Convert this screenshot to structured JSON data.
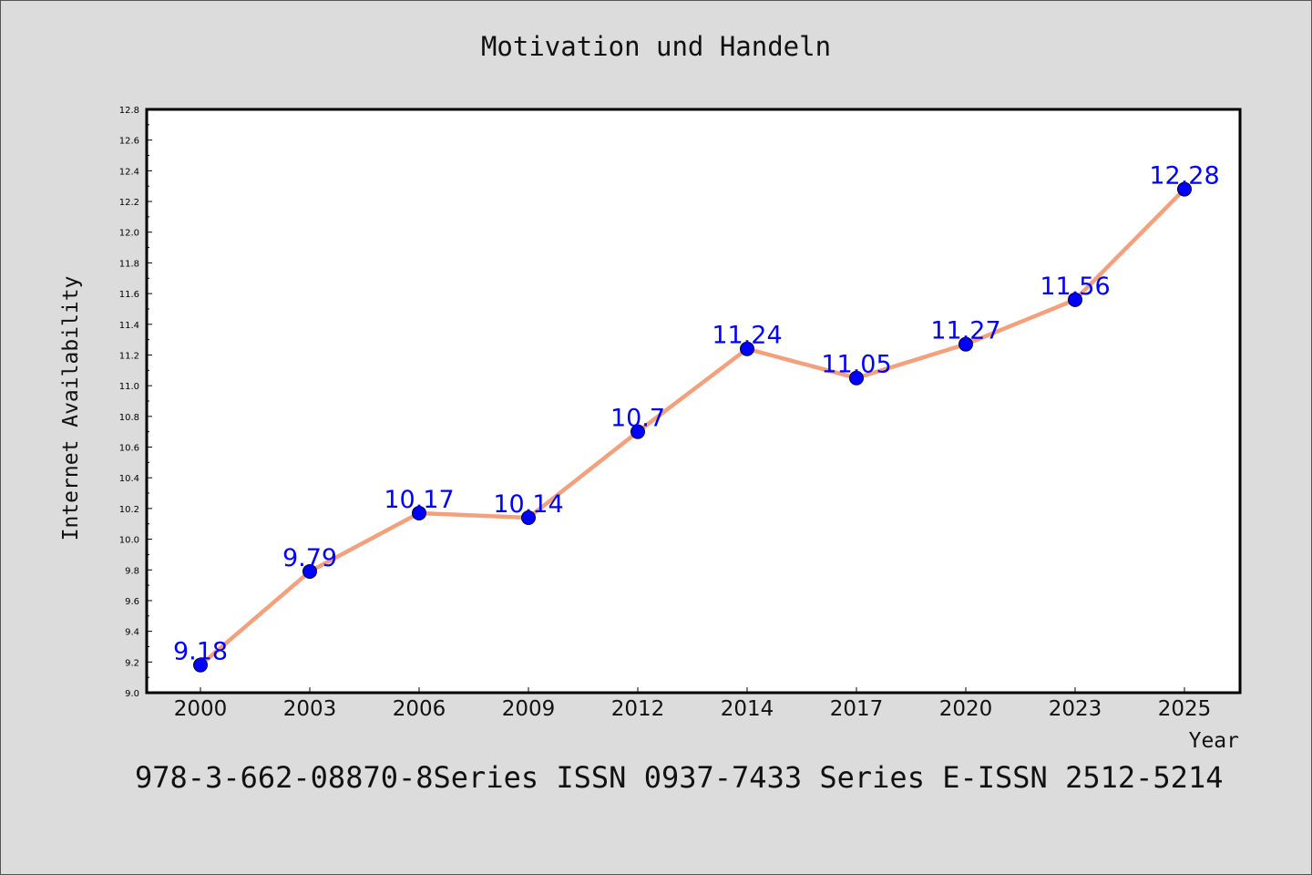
{
  "title": "Motivation und Handeln",
  "footer": "978-3-662-08870-8Series ISSN 0937-7433 Series E-ISSN 2512-5214",
  "colors": {
    "background": "#dcdcdc",
    "plot_background": "#ffffff",
    "line": "#f4a07c",
    "marker": "#0000ff",
    "data_label": "#0000ff"
  },
  "chart_data": {
    "type": "line",
    "title": "Motivation und Handeln",
    "xlabel": "Year",
    "ylabel": "Internet Availability",
    "categories": [
      "2000",
      "2003",
      "2006",
      "2009",
      "2012",
      "2014",
      "2017",
      "2020",
      "2023",
      "2025"
    ],
    "series": [
      {
        "values": [
          9.18,
          9.79,
          10.17,
          10.14,
          10.7,
          11.24,
          11.05,
          11.27,
          11.56,
          12.28
        ],
        "labels": [
          "9.18",
          "9.79",
          "10.17",
          "10.14",
          "10.7",
          "11.24",
          "11.05",
          "11.27",
          "11.56",
          "12.28"
        ]
      }
    ],
    "ylim": [
      9.0,
      12.8
    ],
    "yticks": [
      "9.0",
      "9.2",
      "9.4",
      "9.6",
      "9.8",
      "10.0",
      "10.2",
      "10.4",
      "10.6",
      "10.8",
      "11.0",
      "11.2",
      "11.4",
      "11.6",
      "11.8",
      "12.0",
      "12.2",
      "12.4",
      "12.6",
      "12.8"
    ],
    "grid": false,
    "legend": "none"
  }
}
